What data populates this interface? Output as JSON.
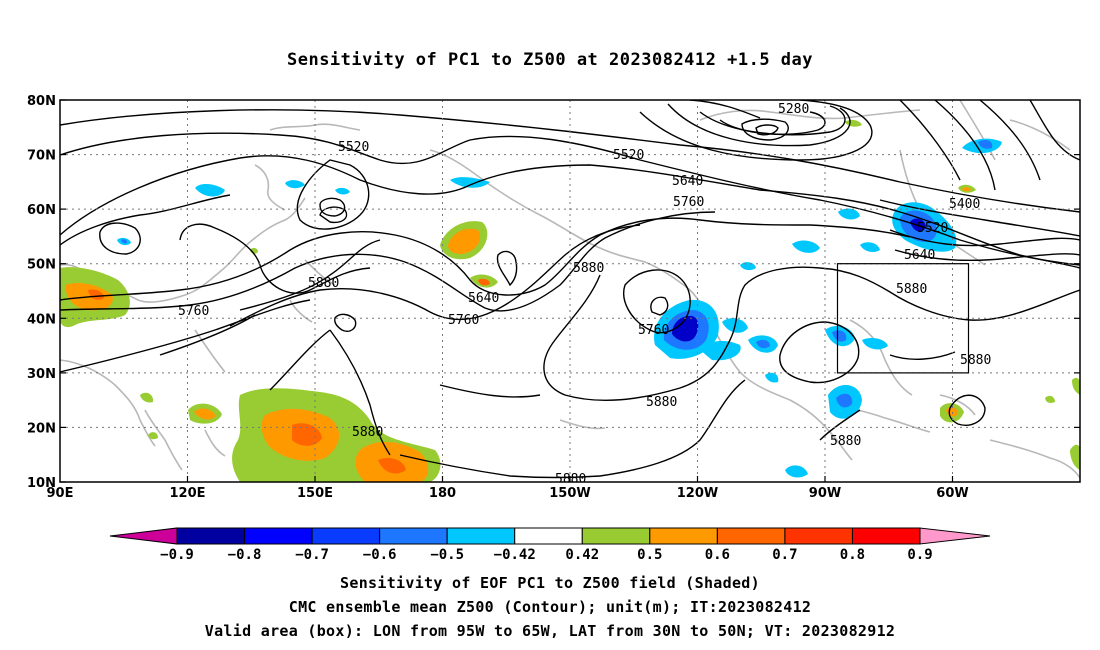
{
  "title": "Sensitivity of PC1 to Z500 at 2023082412 +1.5 day",
  "lat_labels": [
    "80N",
    "70N",
    "60N",
    "50N",
    "40N",
    "30N",
    "20N",
    "10N"
  ],
  "lon_labels": [
    "90E",
    "120E",
    "150E",
    "180",
    "150W",
    "120W",
    "90W",
    "60W"
  ],
  "contour_labels": [
    "5280",
    "5520",
    "5520",
    "5400",
    "5640",
    "5760",
    "5520",
    "5640",
    "5880",
    "5880",
    "5640",
    "5760",
    "5760",
    "5760",
    "5880",
    "5880",
    "5880",
    "5880",
    "5880"
  ],
  "colorbar": {
    "ticks": [
      "−0.9",
      "−0.8",
      "−0.7",
      "−0.6",
      "−0.5",
      "−0.42",
      "0.42",
      "0.5",
      "0.6",
      "0.7",
      "0.8",
      "0.9"
    ],
    "colors": [
      "#0000a0",
      "#0000ff",
      "#0a3cff",
      "#1e78ff",
      "#00c8ff",
      "#ffffff",
      "#99cc33",
      "#ff9900",
      "#ff6600",
      "#ff3300",
      "#ff0000"
    ],
    "under_color": "#cc0099",
    "over_color": "#ff99cc"
  },
  "shading_colors": {
    "neg_deep": "#0000c8",
    "neg_mid": "#1e78ff",
    "neg_light": "#00c8ff",
    "pos_green": "#99cc33",
    "pos_orange": "#ff9900",
    "pos_dark": "#ff6600"
  },
  "caption": {
    "line1": "Sensitivity of EOF PC1 to Z500 field (Shaded)",
    "line2": "CMC ensemble mean Z500 (Contour); unit(m); IT:2023082412",
    "line3": "Valid area (box): LON from 95W to 65W, LAT from 30N to 50N; VT: 2023082912"
  }
}
